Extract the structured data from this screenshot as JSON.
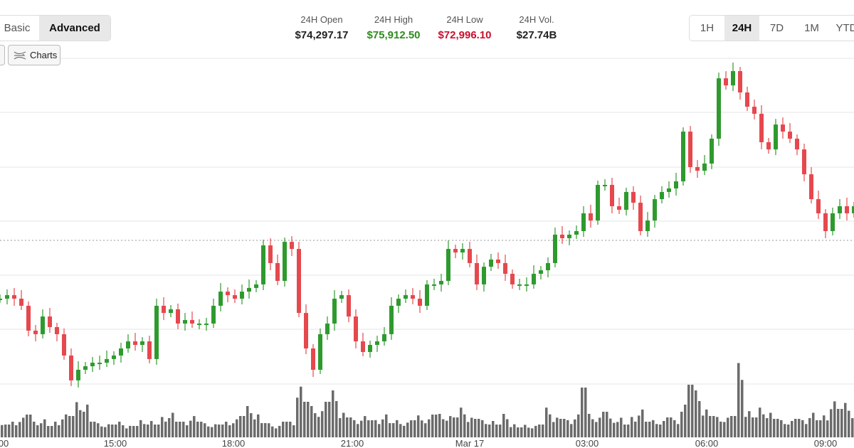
{
  "mode_toggle": {
    "items": [
      {
        "label": "Basic",
        "active": false
      },
      {
        "label": "Advanced",
        "active": true
      }
    ]
  },
  "charts_button": {
    "label": "Charts",
    "icon": "chart-lines-icon"
  },
  "stats": [
    {
      "label": "24H Open",
      "value": "$74,297.17",
      "color": "#222222"
    },
    {
      "label": "24H High",
      "value": "$75,912.50",
      "color": "#2e8b1f"
    },
    {
      "label": "24H Low",
      "value": "$72,996.10",
      "color": "#c8102e"
    },
    {
      "label": "24H Vol.",
      "value": "$27.74B",
      "color": "#222222"
    }
  ],
  "ranges": [
    {
      "label": "1H",
      "active": false
    },
    {
      "label": "24H",
      "active": true
    },
    {
      "label": "7D",
      "active": false
    },
    {
      "label": "1M",
      "active": false
    },
    {
      "label": "YTD",
      "active": false
    }
  ],
  "chart_data": {
    "type": "candlestick",
    "up_color": "#2e9a2e",
    "down_color": "#e5484d",
    "volume_color": "#6b6b6b",
    "x_ticks": [
      "00",
      "15:00",
      "18:00",
      "21:00",
      "Mar 17",
      "03:00",
      "06:00",
      "09:00"
    ],
    "ylim": [
      72996,
      75912
    ],
    "grid": true,
    "current_price_line": true,
    "closes": [
      73837,
      73868,
      73837,
      73775,
      73557,
      73526,
      73681,
      73588,
      73526,
      73339,
      73121,
      73214,
      73245,
      73276,
      73276,
      73308,
      73339,
      73401,
      73463,
      73432,
      73463,
      73308,
      73775,
      73712,
      73744,
      73619,
      73650,
      73619,
      73619,
      73619,
      73775,
      73899,
      73868,
      73837,
      73899,
      73931,
      73962,
      74304,
      74149,
      73993,
      74335,
      74273,
      73712,
      73401,
      73214,
      73526,
      73619,
      73837,
      73868,
      73681,
      73463,
      73370,
      73432,
      73463,
      73526,
      73775,
      73837,
      73868,
      73837,
      73775,
      73962,
      73962,
      73993,
      74273,
      74242,
      74273,
      74149,
      73962,
      74117,
      74180,
      74149,
      74055,
      73962,
      73962,
      73962,
      74055,
      74086,
      74149,
      74398,
      74367,
      74398,
      74429,
      74585,
      74522,
      74834,
      74834,
      74647,
      74616,
      74772,
      74678,
      74429,
      74522,
      74709,
      74772,
      74803,
      74865,
      75301,
      74990,
      74958,
      75021,
      75239,
      75768,
      75706,
      75831,
      75644,
      75519,
      75457,
      75208,
      75145,
      75363,
      75301,
      75239,
      75145,
      74927,
      74709,
      74585,
      74429,
      74585,
      74647,
      74585,
      74647
    ],
    "volumes": [
      15,
      18,
      20,
      24,
      32,
      20,
      22,
      16,
      20,
      28,
      30,
      45,
      40,
      22,
      18,
      16,
      18,
      20,
      14,
      16,
      22,
      20,
      18,
      26,
      30,
      22,
      20,
      26,
      22,
      18,
      16,
      18,
      20,
      22,
      30,
      40,
      28,
      20,
      18,
      14,
      22,
      20,
      62,
      50,
      40,
      32,
      50,
      60,
      30,
      28,
      22,
      26,
      24,
      22,
      28,
      20,
      22,
      18,
      24,
      28,
      22,
      32,
      30,
      26,
      28,
      38,
      24,
      26,
      22,
      20,
      18,
      30,
      16,
      14,
      16,
      14,
      18,
      38,
      24,
      26,
      22,
      28,
      70,
      30,
      24,
      36,
      24,
      24,
      18,
      26,
      34,
      22,
      22,
      20,
      28,
      22,
      40,
      74,
      60,
      34,
      30,
      26,
      24,
      30,
      95,
      32,
      28,
      38,
      30,
      26,
      22,
      20,
      26,
      22,
      30,
      24,
      28,
      44,
      40,
      44,
      30
    ]
  }
}
